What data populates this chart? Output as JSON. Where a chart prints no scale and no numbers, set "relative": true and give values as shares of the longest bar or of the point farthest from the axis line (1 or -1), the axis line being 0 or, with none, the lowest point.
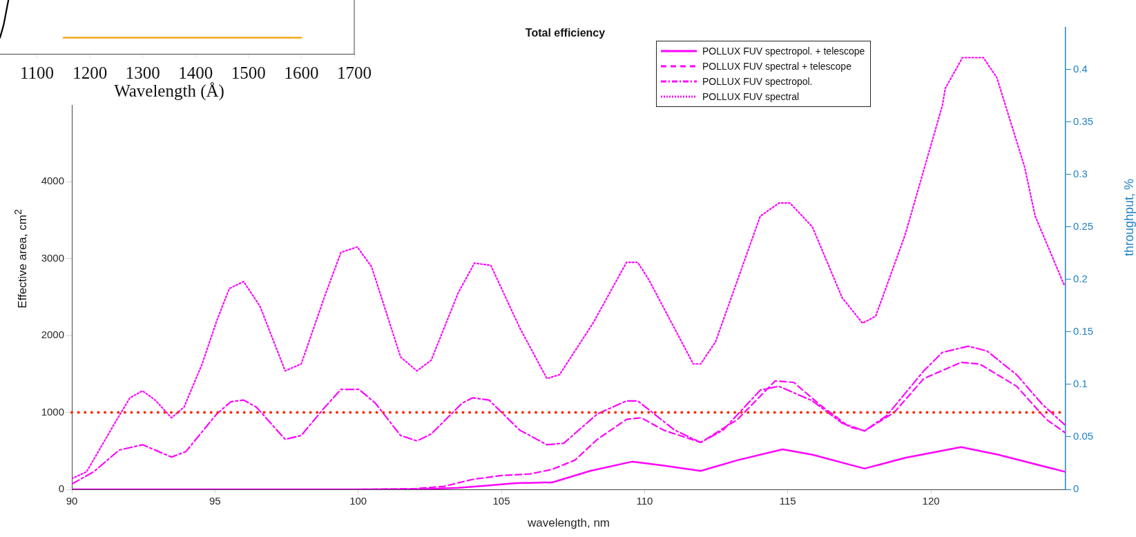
{
  "chart_data": [
    {
      "type": "line",
      "title": "Total efficiency",
      "xlabel": "wavelength, nm",
      "ylabel": "Effective area, cm$^{2}$",
      "y2label": "throughput, %",
      "xlim": [
        90,
        124.7
      ],
      "xticks": [
        90,
        95,
        100,
        105,
        110,
        115,
        120
      ],
      "ylim": [
        0,
        6000
      ],
      "yticks": [
        0,
        1000,
        2000,
        3000,
        4000,
        {
          "value": 5000,
          "label": null
        }
      ],
      "y2lim": [
        0,
        0.44
      ],
      "y2ticks": [
        0,
        0.05,
        0.1,
        0.15,
        0.2,
        0.25,
        0.3,
        0.35,
        0.4
      ],
      "legend": "top right",
      "ref_lines": [
        {
          "axis": "y",
          "value": 1000,
          "color": "#ff2a00",
          "line_style": "dotted"
        }
      ],
      "series": [
        {
          "name": "POLLUX FUV spectropol. + telescope",
          "color": "#ff00ff",
          "line_style": "solid",
          "x": [
            90,
            95,
            100,
            102,
            103.5,
            104.5,
            105.5,
            106.5,
            106.77,
            108.1,
            109.56,
            110.66,
            111.96,
            113.25,
            114.82,
            115.86,
            117.68,
            119.1,
            121.05,
            122.35,
            124.67
          ],
          "values": [
            0,
            0,
            0,
            0,
            20,
            50,
            80,
            90,
            90,
            240,
            360,
            310,
            240,
            380,
            520,
            450,
            270,
            410,
            550,
            450,
            230
          ]
        },
        {
          "name": "POLLUX FUV spectral + telescope",
          "color": "#ff00ff",
          "line_style": "dashed",
          "x": [
            90,
            95,
            100,
            102,
            103,
            104,
            105,
            106,
            106.77,
            107.57,
            108.35,
            109.37,
            109.89,
            110.66,
            111.96,
            113.25,
            114.56,
            115.21,
            116.12,
            117.16,
            117.68,
            118.72,
            119.75,
            121.05,
            121.7,
            122.99,
            124.03,
            124.67
          ],
          "values": [
            0,
            0,
            0,
            10,
            40,
            130,
            180,
            200,
            260,
            380,
            650,
            910,
            930,
            770,
            610,
            910,
            1410,
            1390,
            1100,
            810,
            760,
            1000,
            1440,
            1650,
            1630,
            1340,
            910,
            740
          ]
        },
        {
          "name": "POLLUX FUV spectropol.",
          "color": "#ff00ff",
          "line_style": "dashdot",
          "x": [
            90,
            90.77,
            91.65,
            92.47,
            93.04,
            93.48,
            93.98,
            95.06,
            95.56,
            96.0,
            96.44,
            97.45,
            98.01,
            98.84,
            99.4,
            100.03,
            100.6,
            101.48,
            102.05,
            102.55,
            103.63,
            104.0,
            104.57,
            105.64,
            106.59,
            107.18,
            108.35,
            109.37,
            109.76,
            110.27,
            111.05,
            111.96,
            112.74,
            114.04,
            114.69,
            115.86,
            116.9,
            117.68,
            118.46,
            119.75,
            120.4,
            121.3,
            121.95,
            122.99,
            123.9,
            124.67
          ],
          "values": [
            70,
            230,
            510,
            580,
            490,
            420,
            490,
            980,
            1140,
            1160,
            1070,
            650,
            700,
            1070,
            1300,
            1300,
            1120,
            700,
            630,
            720,
            1120,
            1190,
            1160,
            770,
            580,
            600,
            980,
            1150,
            1150,
            1000,
            770,
            610,
            770,
            1290,
            1340,
            1150,
            860,
            760,
            960,
            1540,
            1780,
            1860,
            1800,
            1490,
            1100,
            840
          ]
        },
        {
          "name": "POLLUX FUV spectral",
          "color": "#ff00ff",
          "line_style": "dotted",
          "x": [
            90,
            90.52,
            91.53,
            92.03,
            92.47,
            92.91,
            93.48,
            93.92,
            94.55,
            95.06,
            95.5,
            96.0,
            96.57,
            97.45,
            98.01,
            98.84,
            99.4,
            99.97,
            100.47,
            101.48,
            102.05,
            102.55,
            103.5,
            104.06,
            104.63,
            105.64,
            106.59,
            107.03,
            108.2,
            109.37,
            109.76,
            110.14,
            111.7,
            111.96,
            112.48,
            114.04,
            114.69,
            115.08,
            115.86,
            116.9,
            117.61,
            118.07,
            119.1,
            120.4,
            120.5,
            121.1,
            121.83,
            122.3,
            123.27,
            123.64,
            124.67
          ],
          "values": [
            140,
            230,
            880,
            1190,
            1280,
            1160,
            930,
            1070,
            1630,
            2190,
            2610,
            2700,
            2380,
            1540,
            1630,
            2520,
            3080,
            3150,
            2890,
            1720,
            1540,
            1680,
            2560,
            2940,
            2910,
            2100,
            1440,
            1490,
            2160,
            2950,
            2950,
            2730,
            1630,
            1630,
            1920,
            3550,
            3720,
            3720,
            3410,
            2490,
            2160,
            2250,
            3310,
            4990,
            5210,
            5610,
            5610,
            5350,
            4190,
            3550,
            2640
          ]
        }
      ]
    },
    {
      "type": "line",
      "relative": true,
      "xlabel": "Wavelength (Å)",
      "xlim": [
        1000,
        1700
      ],
      "xticks": [
        {
          "value": 1000,
          "label": null
        },
        1100,
        1200,
        1300,
        1400,
        1500,
        1600,
        1700
      ],
      "series": [
        {
          "color": "#000000",
          "x": [
            1030,
            1037,
            1046
          ],
          "values": [
            0.3,
            0.54,
            1
          ]
        },
        {
          "color": "#f5a000",
          "x": [
            1150,
            1600
          ],
          "values": [
            0.3,
            0.3
          ]
        }
      ]
    }
  ]
}
